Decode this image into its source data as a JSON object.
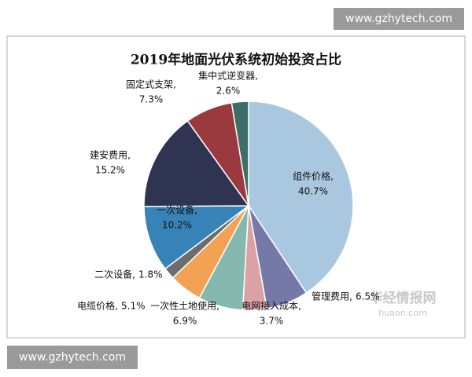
{
  "chart_data": {
    "type": "pie",
    "title": "2019年地面光伏系统初始投资占比",
    "categories": [
      "组件价格,",
      "管理费用,",
      "电网接入成本,",
      "一次性土地使用,",
      "电缆价格,",
      "二次设备,",
      "一次设备,",
      "建安费用,",
      "固定式支架,",
      "集中式逆变器,"
    ],
    "values": [
      40.7,
      6.5,
      3.7,
      6.9,
      5.1,
      1.8,
      10.2,
      15.2,
      7.3,
      2.6
    ],
    "value_labels": [
      "40.7%",
      "6.5%",
      "3.7%",
      "6.9%",
      "5.1%",
      "1.8%",
      "10.2%",
      "15.2%",
      "7.3%",
      "2.6%"
    ],
    "colors": [
      "#a9c8df",
      "#7479a6",
      "#dba2a6",
      "#85b8ae",
      "#f2a253",
      "#6d6d6d",
      "#3783b8",
      "#2e3452",
      "#9a3a3f",
      "#3f6e69"
    ]
  },
  "site_labels": [
    "www.gzhytech.com",
    "www.gzhytech.com"
  ],
  "watermark": {
    "name": "华经情报网",
    "url": "huaon.com"
  }
}
